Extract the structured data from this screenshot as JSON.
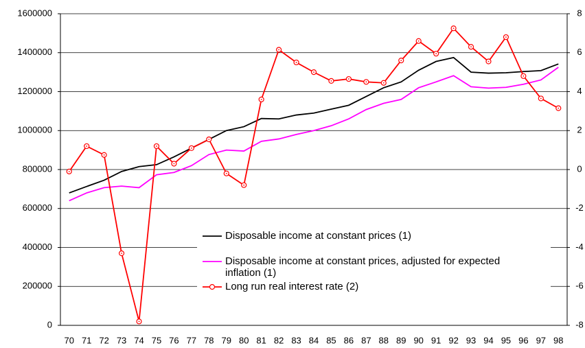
{
  "chart_data": {
    "type": "line",
    "categories": [
      "70",
      "71",
      "72",
      "73",
      "74",
      "75",
      "76",
      "77",
      "78",
      "79",
      "80",
      "81",
      "82",
      "83",
      "84",
      "85",
      "86",
      "87",
      "88",
      "89",
      "90",
      "91",
      "92",
      "93",
      "94",
      "95",
      "96",
      "97",
      "98"
    ],
    "ylim": [
      0,
      1600000
    ],
    "yticks": [
      0,
      200000,
      400000,
      600000,
      800000,
      1000000,
      1200000,
      1400000,
      1600000
    ],
    "y2lim": [
      -8,
      8
    ],
    "y2ticks": [
      -8,
      -6,
      -4,
      -2,
      0,
      2,
      4,
      6,
      8
    ],
    "grid": true,
    "series": [
      {
        "name": "Disposable income at constant prices (1)",
        "color": "#000000",
        "values": [
          680000,
          713000,
          745000,
          790000,
          815000,
          825000,
          865000,
          910000,
          955000,
          1000000,
          1020000,
          1062000,
          1060000,
          1080000,
          1090000,
          1110000,
          1130000,
          1175000,
          1220000,
          1250000,
          1310000,
          1355000,
          1375000,
          1300000,
          1295000,
          1297000,
          1303000,
          1308000,
          1342000
        ]
      },
      {
        "name": "Disposable income at constant prices, adjusted for expected inflation (1)",
        "color": "#ff00ff",
        "values": [
          640000,
          680000,
          707000,
          715000,
          707000,
          773000,
          785000,
          820000,
          877000,
          900000,
          895000,
          945000,
          957000,
          980000,
          1000000,
          1025000,
          1060000,
          1108000,
          1140000,
          1160000,
          1220000,
          1250000,
          1282000,
          1225000,
          1218000,
          1222000,
          1238000,
          1260000,
          1325000
        ]
      },
      {
        "name": "Long run real interest rate (2)",
        "color": "#ff0000",
        "axis": "y2",
        "markers": true,
        "values": [
          -0.1,
          1.2,
          0.75,
          -4.3,
          -7.8,
          1.2,
          0.3,
          1.1,
          1.55,
          -0.2,
          -0.8,
          3.6,
          6.15,
          5.5,
          5.0,
          4.55,
          4.65,
          4.5,
          4.45,
          5.6,
          6.6,
          5.95,
          7.25,
          6.3,
          5.55,
          6.8,
          4.8,
          3.65,
          3.15
        ]
      }
    ]
  }
}
